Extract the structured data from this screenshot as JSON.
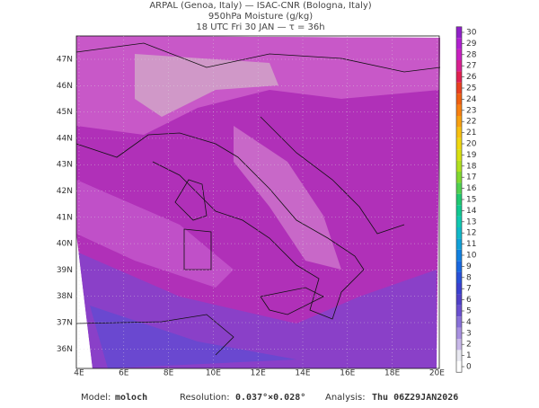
{
  "header": {
    "line1": "ARPAL (Genoa, Italy)  —  ISAC-CNR (Bologna, Italy)",
    "line2": "950hPa Moisture (g/kg)",
    "line3": "18 UTC Fri 30 JAN  —  τ = 36h"
  },
  "map": {
    "lat_labels": [
      "47N",
      "46N",
      "45N",
      "44N",
      "43N",
      "42N",
      "41N",
      "40N",
      "39N",
      "38N",
      "37N",
      "36N"
    ],
    "lon_labels": [
      "4E",
      "6E",
      "8E",
      "10E",
      "12E",
      "14E",
      "16E",
      "18E",
      "20E"
    ]
  },
  "colorbar": {
    "ticks": [
      0,
      1,
      2,
      3,
      4,
      5,
      6,
      7,
      8,
      9,
      10,
      11,
      12,
      13,
      14,
      15,
      16,
      17,
      18,
      19,
      20,
      21,
      22,
      23,
      24,
      25,
      26,
      27,
      28,
      29,
      30
    ],
    "colors": [
      "#ffffff",
      "#e8e8f0",
      "#c8b8e8",
      "#a890e0",
      "#8870d8",
      "#6a50d0",
      "#5040c8",
      "#3a40d0",
      "#2850d8",
      "#1868e0",
      "#1080e0",
      "#10a0d8",
      "#10b8c8",
      "#10c8b0",
      "#10c890",
      "#20c870",
      "#50d050",
      "#80d830",
      "#b0e020",
      "#d8e010",
      "#f0d810",
      "#f8c010",
      "#f8a010",
      "#f88010",
      "#f06010",
      "#e84020",
      "#e02050",
      "#d82090",
      "#c820c0",
      "#b020d0",
      "#9020c8"
    ]
  },
  "footer": {
    "model_label": "Model:",
    "model": "moloch",
    "res_label": "Resolution:",
    "res": "0.037°×0.028°",
    "analysis_label": "Analysis:",
    "analysis": "Thu 06Z29JAN2026"
  }
}
